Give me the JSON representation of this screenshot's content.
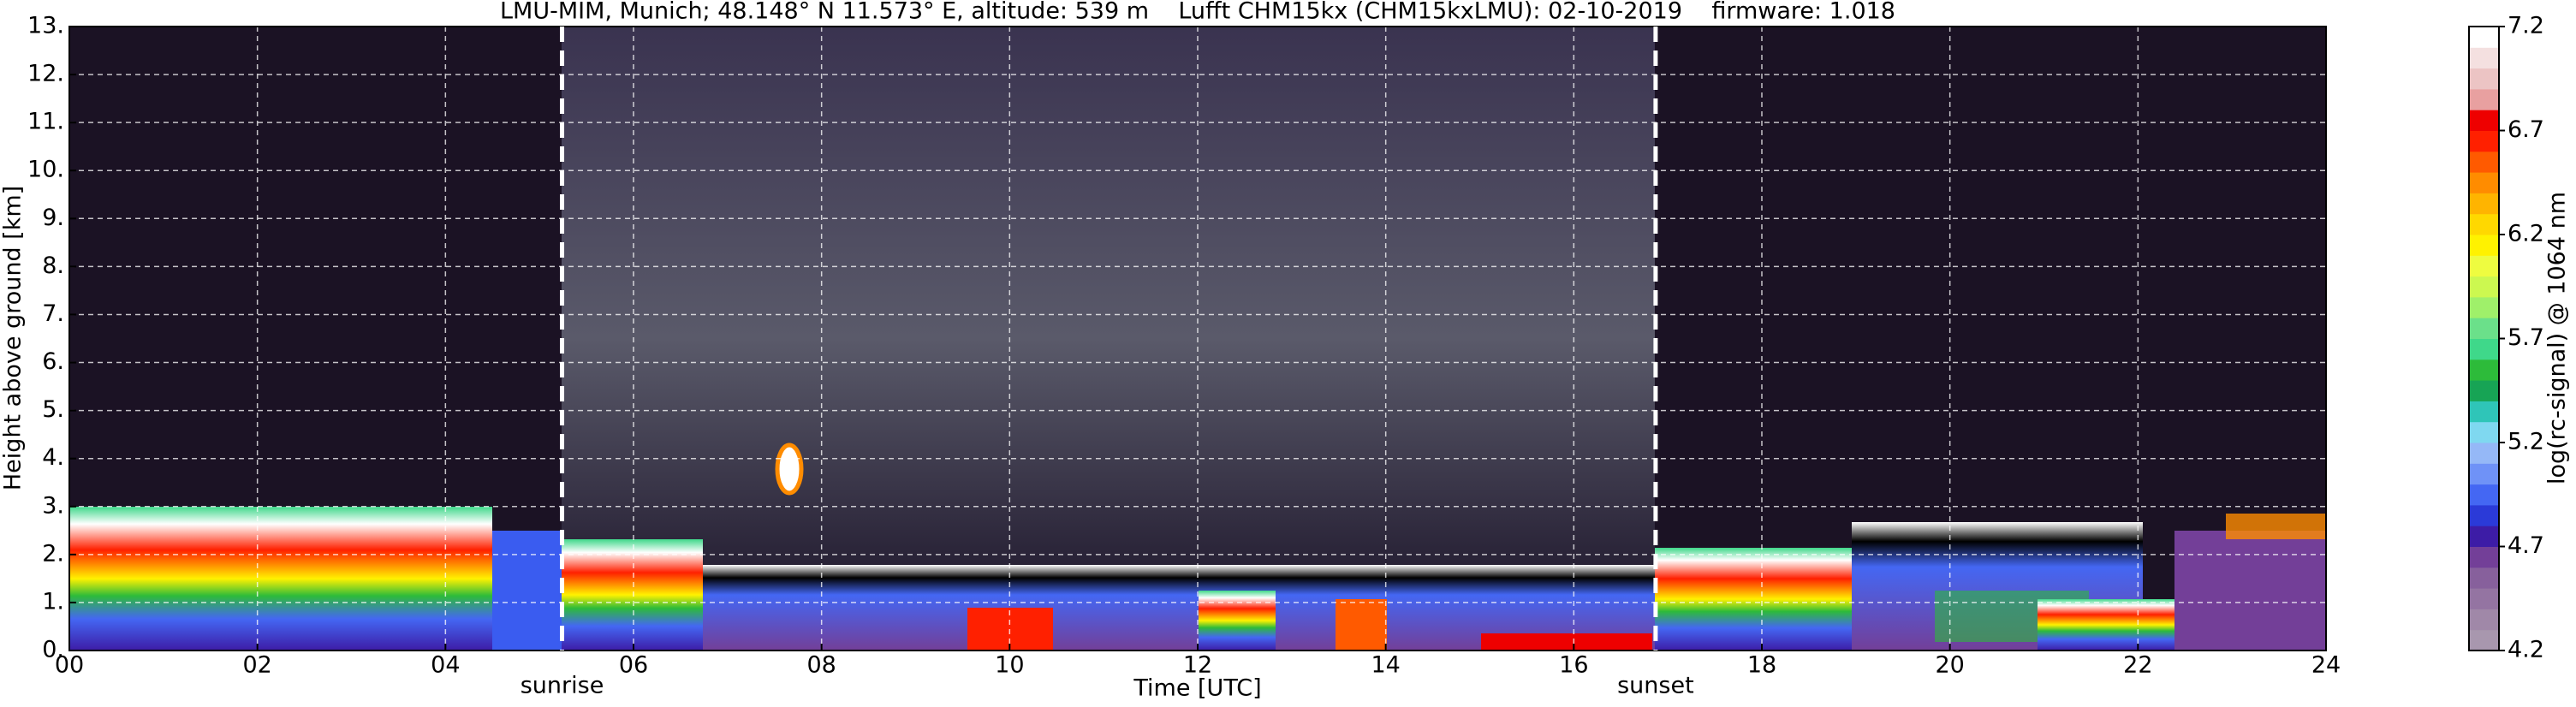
{
  "chart_data": {
    "type": "heatmap",
    "title": "LMU-MIM, Munich; 48.148° N 11.573° E, altitude: 539 m    Lufft CHM15kx (CHM15kxLMU): 02-10-2019    firmware: 1.018",
    "x_label": "Time [UTC]",
    "y_label": "Height above ground [km]",
    "xlim": [
      0,
      24
    ],
    "xticks": [
      {
        "value": 0,
        "label": "00"
      },
      {
        "value": 2,
        "label": "02"
      },
      {
        "value": 4,
        "label": "04"
      },
      {
        "value": 6,
        "label": "06"
      },
      {
        "value": 8,
        "label": "08"
      },
      {
        "value": 10,
        "label": "10"
      },
      {
        "value": 12,
        "label": "12"
      },
      {
        "value": 14,
        "label": "14"
      },
      {
        "value": 16,
        "label": "16"
      },
      {
        "value": 18,
        "label": "18"
      },
      {
        "value": 20,
        "label": "20"
      },
      {
        "value": 22,
        "label": "22"
      },
      {
        "value": 24,
        "label": "24"
      }
    ],
    "ylim": [
      0,
      13
    ],
    "yticks": [
      {
        "value": 0,
        "label": "0."
      },
      {
        "value": 1,
        "label": "1."
      },
      {
        "value": 2,
        "label": "2."
      },
      {
        "value": 3,
        "label": "3."
      },
      {
        "value": 4,
        "label": "4."
      },
      {
        "value": 5,
        "label": "5."
      },
      {
        "value": 6,
        "label": "6."
      },
      {
        "value": 7,
        "label": "7."
      },
      {
        "value": 8,
        "label": "8."
      },
      {
        "value": 9,
        "label": "9."
      },
      {
        "value": 10,
        "label": "10."
      },
      {
        "value": 11,
        "label": "11."
      },
      {
        "value": 12,
        "label": "12."
      },
      {
        "value": 13,
        "label": "13."
      }
    ],
    "grid": true,
    "annotations": [
      {
        "text": "sunrise",
        "x": 5.24
      },
      {
        "text": "sunset",
        "x": 16.87
      }
    ],
    "colorbar": {
      "label": "log(rc-signal) @ 1064 nm",
      "lim": [
        4.2,
        7.2
      ],
      "ticks": [
        4.2,
        4.7,
        5.2,
        5.7,
        6.2,
        6.7,
        7.2
      ],
      "colors": [
        "#a897ae",
        "#a088a8",
        "#9474a2",
        "#87609c",
        "#733f98",
        "#3d1ca6",
        "#2b3ad8",
        "#4467f3",
        "#6f92f7",
        "#95b8f7",
        "#7fd8f0",
        "#2fc5b8",
        "#17a455",
        "#2dbb3a",
        "#3fd88a",
        "#6be08a",
        "#9ff06a",
        "#ccf850",
        "#eefc40",
        "#fff200",
        "#ffd800",
        "#ffb400",
        "#ff8c00",
        "#ff5a00",
        "#ff2000",
        "#ee0000",
        "#e8a0a0",
        "#ecc4c4",
        "#f4e0e0",
        "#ffffff"
      ]
    }
  }
}
